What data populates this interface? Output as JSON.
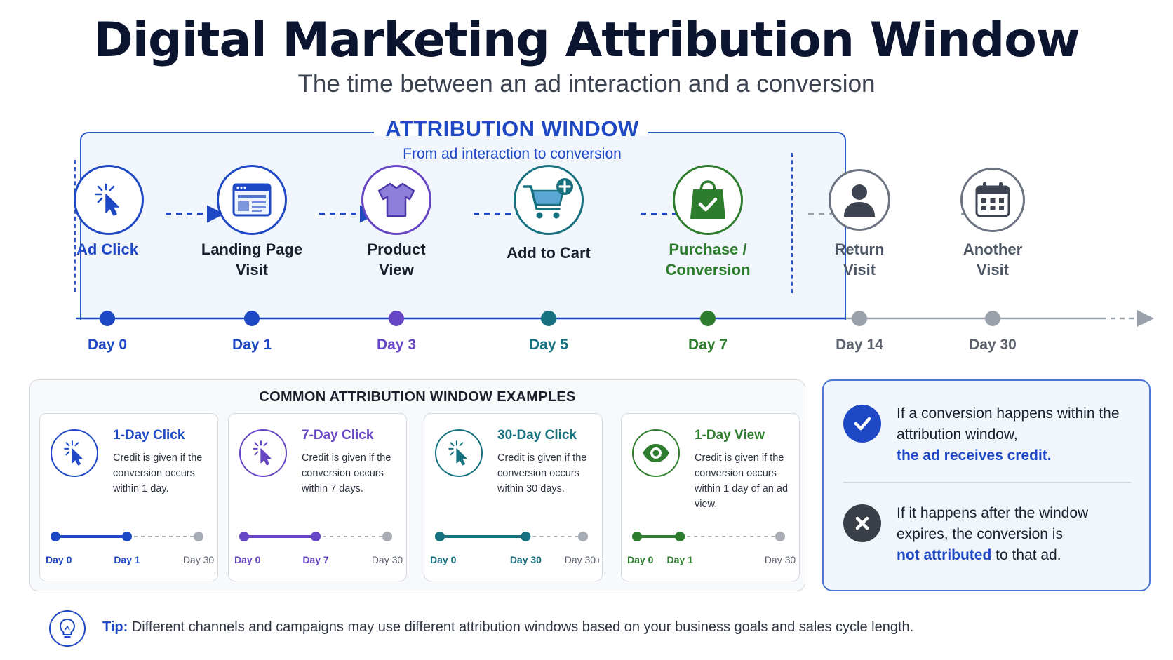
{
  "header": {
    "title": "Digital Marketing Attribution Window",
    "subtitle": "The time between an ad interaction and a conversion"
  },
  "window": {
    "title": "ATTRIBUTION WINDOW",
    "subtitle": "From ad interaction to conversion"
  },
  "steps": [
    {
      "label_line1": "Ad Click",
      "label_line2": "",
      "day": "Day 0",
      "icon": "cursor-click-icon",
      "color": "#1f48c4"
    },
    {
      "label_line1": "Landing Page",
      "label_line2": "Visit",
      "day": "Day 1",
      "icon": "webpage-icon",
      "color": "#1f48c4"
    },
    {
      "label_line1": "Product",
      "label_line2": "View",
      "day": "Day 3",
      "icon": "tshirt-icon",
      "color": "#6646c4"
    },
    {
      "label_line1": "Add to Cart",
      "label_line2": "",
      "day": "Day 5",
      "icon": "cart-plus-icon",
      "color": "#17707e"
    },
    {
      "label_line1": "Purchase /",
      "label_line2": "Conversion",
      "day": "Day 7",
      "icon": "shopping-bag-check-icon",
      "color": "#2e7d2e"
    },
    {
      "label_line1": "Return",
      "label_line2": "Visit",
      "day": "Day 14",
      "icon": "user-icon",
      "color": "#6b7280"
    },
    {
      "label_line1": "Another",
      "label_line2": "Visit",
      "day": "Day 30",
      "icon": "calendar-icon",
      "color": "#6b7280"
    }
  ],
  "examples": {
    "title": "COMMON ATTRIBUTION WINDOW EXAMPLES",
    "cards": [
      {
        "title": "1-Day Click",
        "desc": "Credit is given if the conversion occurs within 1 day.",
        "icon": "cursor-click-icon",
        "color": "#1f48c4",
        "tl_start": "Day 0",
        "tl_mid": "Day 1",
        "tl_end": "Day 30",
        "fill_fraction": 0.5
      },
      {
        "title": "7-Day Click",
        "desc": "Credit is given if the conversion occurs within 7 days.",
        "icon": "cursor-click-icon",
        "color": "#6646c4",
        "tl_start": "Day 0",
        "tl_mid": "Day 7",
        "tl_end": "Day 30",
        "fill_fraction": 0.5
      },
      {
        "title": "30-Day Click",
        "desc": "Credit is given if the conversion occurs within 30 days.",
        "icon": "cursor-click-icon",
        "color": "#17707e",
        "tl_start": "Day 0",
        "tl_mid": "Day 30",
        "tl_end": "Day 30+",
        "fill_fraction": 0.6
      },
      {
        "title": "1-Day View",
        "desc": "Credit is given if the conversion occurs within 1 day of an ad view.",
        "icon": "eye-icon",
        "color": "#2e7d2e",
        "tl_start": "Day 0",
        "tl_mid": "Day 1",
        "tl_end": "Day 30",
        "fill_fraction": 0.3
      }
    ]
  },
  "rules": {
    "within_1": "If a conversion happens within the attribution window,",
    "within_em": "the ad receives credit.",
    "after_1": "If it happens after the window expires, the conversion is",
    "after_em": "not attributed",
    "after_2": " to that ad."
  },
  "tip": {
    "key": "Tip:",
    "text": " Different channels and campaigns may use different attribution windows based on your business goals and sales cycle length."
  }
}
